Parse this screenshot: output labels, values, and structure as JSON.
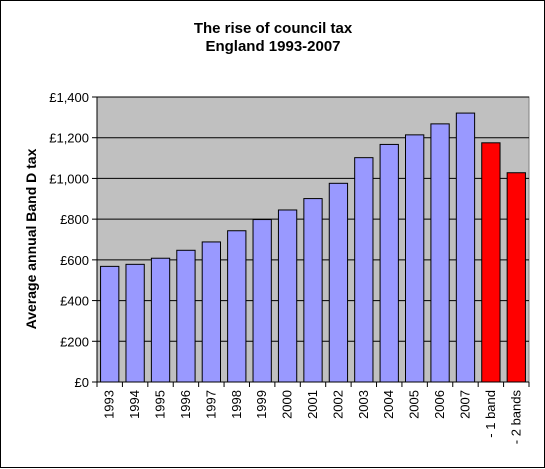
{
  "chart_data": {
    "type": "bar",
    "title_lines": [
      "The rise of council tax",
      "England 1993-2007"
    ],
    "xlabel": "",
    "ylabel": "Average annual Band D tax",
    "ylim": [
      0,
      1400
    ],
    "yticks": [
      0,
      200,
      400,
      600,
      800,
      1000,
      1200,
      1400
    ],
    "ytick_labels": [
      "£0",
      "£200",
      "£400",
      "£600",
      "£800",
      "£1,000",
      "£1,200",
      "£1,400"
    ],
    "grid": true,
    "legend": "none",
    "plot_background": "#c0c0c0",
    "bar_edge_color": "#000000",
    "categories": [
      "1993",
      "1994",
      "1995",
      "1996",
      "1997",
      "1998",
      "1999",
      "2000",
      "2001",
      "2002",
      "2003",
      "2004",
      "2005",
      "2006",
      "2007",
      "- 1 band",
      "- 2 bands"
    ],
    "values": [
      568,
      578,
      608,
      647,
      688,
      743,
      798,
      845,
      901,
      976,
      1102,
      1167,
      1214,
      1268,
      1321,
      1175,
      1028
    ],
    "colors": [
      "#9999ff",
      "#9999ff",
      "#9999ff",
      "#9999ff",
      "#9999ff",
      "#9999ff",
      "#9999ff",
      "#9999ff",
      "#9999ff",
      "#9999ff",
      "#9999ff",
      "#9999ff",
      "#9999ff",
      "#9999ff",
      "#9999ff",
      "#ff0000",
      "#ff0000"
    ]
  }
}
